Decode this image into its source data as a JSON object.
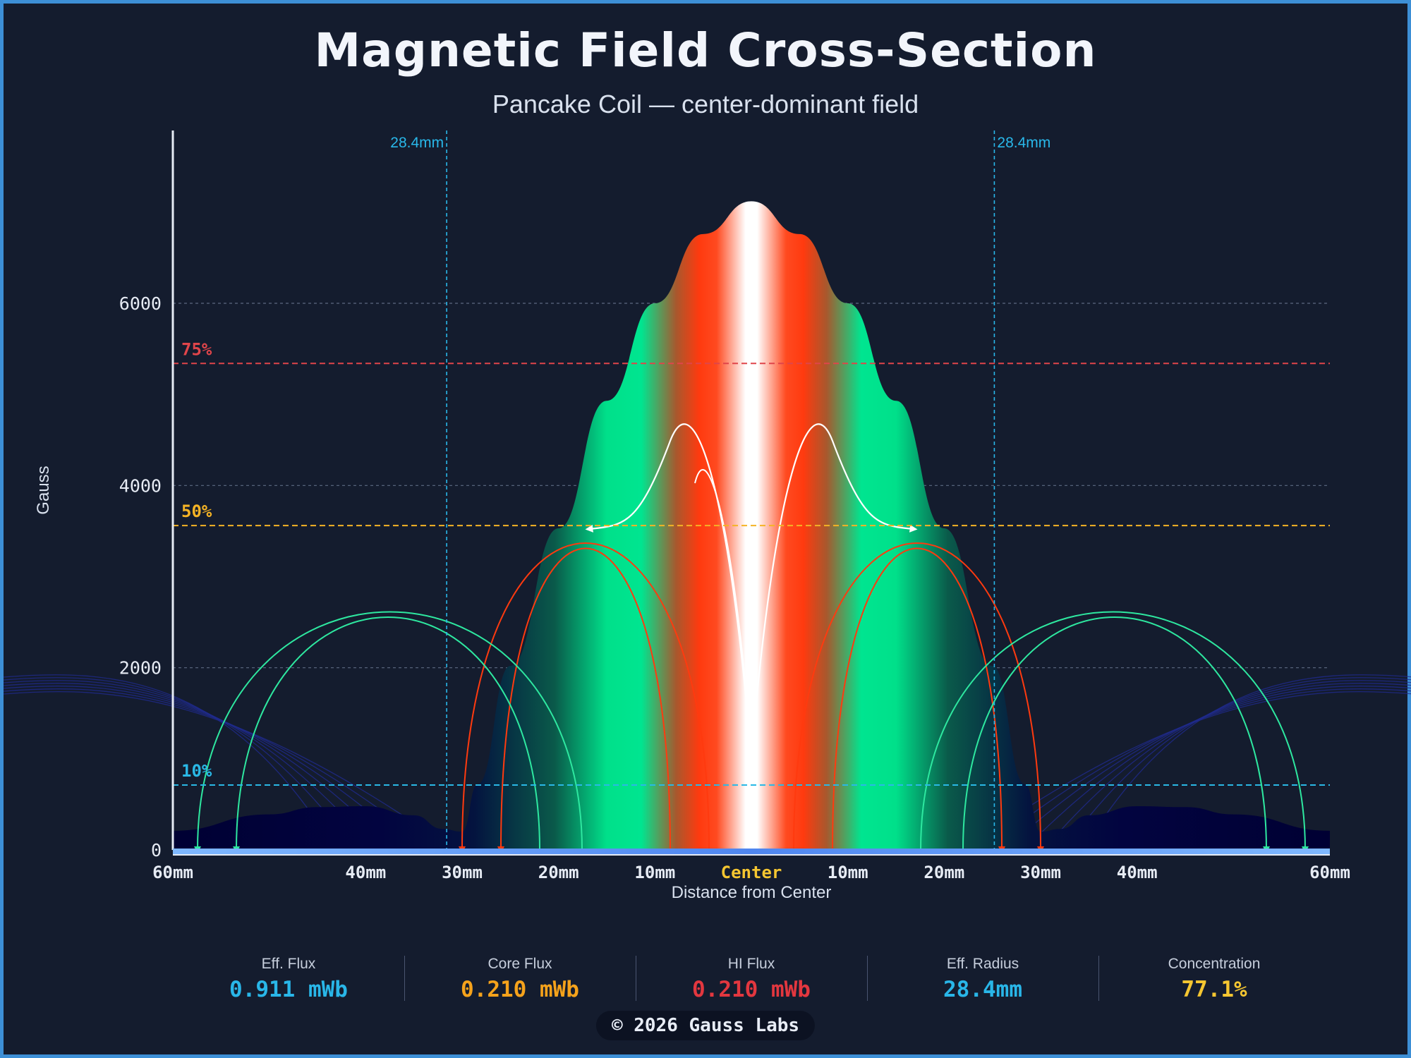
{
  "title": "Magnetic Field Cross-Section",
  "subtitle": "Pancake Coil — center-dominant field",
  "chart_data": {
    "type": "area",
    "ylabel": "Gauss",
    "xlabel": "Distance from Center",
    "ylim": [
      0,
      7500
    ],
    "xlim": [
      -60,
      60
    ],
    "y_ticks": [
      0,
      2000,
      4000,
      6000
    ],
    "x_ticks": [
      {
        "value": -60,
        "label": "60mm"
      },
      {
        "value": -40,
        "label": "40mm"
      },
      {
        "value": -30,
        "label": "30mm"
      },
      {
        "value": -20,
        "label": "20mm"
      },
      {
        "value": -10,
        "label": "10mm"
      },
      {
        "value": 0,
        "label": "Center"
      },
      {
        "value": 10,
        "label": "10mm"
      },
      {
        "value": 20,
        "label": "20mm"
      },
      {
        "value": 30,
        "label": "30mm"
      },
      {
        "value": 40,
        "label": "40mm"
      },
      {
        "value": 60,
        "label": "60mm"
      }
    ],
    "grid": true,
    "field_profile": {
      "x": [
        -60,
        -50,
        -45,
        -40,
        -35,
        -32,
        -30,
        -28.4,
        -25,
        -20,
        -15,
        -10,
        -5,
        0,
        5,
        10,
        15,
        20,
        25,
        28.4,
        30,
        32,
        35,
        40,
        45,
        50,
        60
      ],
      "y": [
        210,
        390,
        470,
        480,
        380,
        230,
        200,
        720,
        2020,
        3530,
        4930,
        6000,
        6760,
        7120,
        6760,
        6000,
        4930,
        3530,
        2020,
        720,
        200,
        230,
        380,
        480,
        470,
        390,
        210
      ]
    },
    "thresholds": [
      {
        "label": "75%",
        "value": 5340,
        "color": "#e0454a"
      },
      {
        "label": "50%",
        "value": 3560,
        "color": "#f5b325"
      },
      {
        "label": "10%",
        "value": 712,
        "color": "#2ab8e6"
      }
    ],
    "radius_markers": [
      {
        "label": "28.4mm",
        "value": -31.6
      },
      {
        "label": "28.4mm",
        "value": 25.2
      }
    ],
    "colors": {
      "accent": "#29b8ea",
      "core": "#ff3a0f",
      "mid": "#00e08a",
      "edge": "#0b0f5c"
    }
  },
  "stats": [
    {
      "label": "Eff. Flux",
      "value": "0.911 mWb",
      "color": "#29b6e8"
    },
    {
      "label": "Core Flux",
      "value": "0.210 mWb",
      "color": "#f5a21b"
    },
    {
      "label": "HI Flux",
      "value": "0.210 mWb",
      "color": "#e3373f"
    },
    {
      "label": "Eff. Radius",
      "value": "28.4mm",
      "color": "#29b6e8"
    },
    {
      "label": "Concentration",
      "value": "77.1%",
      "color": "#f5c631"
    }
  ],
  "footer": "© 2026 Gauss Labs"
}
